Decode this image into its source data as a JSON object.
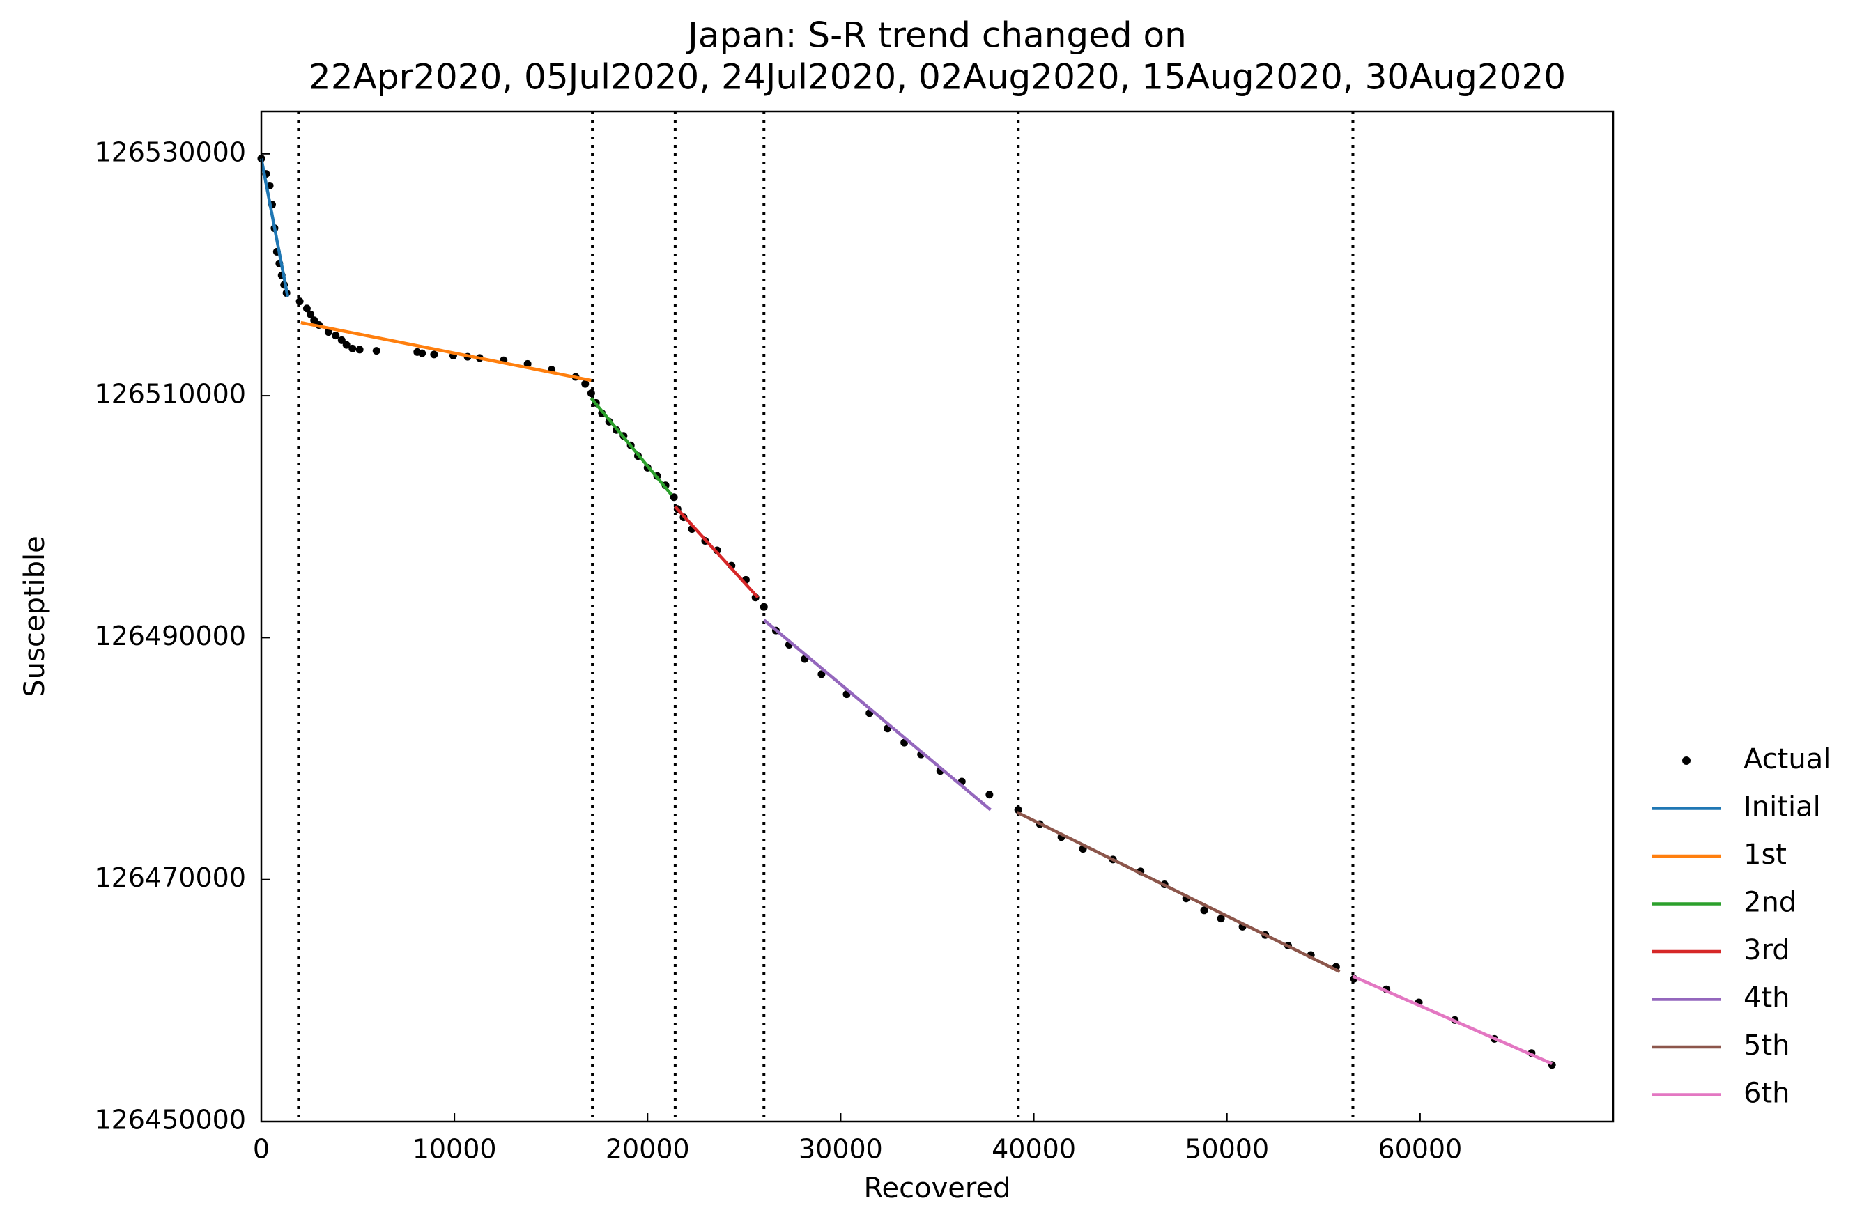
{
  "chart_data": {
    "type": "scatter",
    "title": [
      "Japan: S-R trend changed on",
      "22Apr2020, 05Jul2020, 24Jul2020, 02Aug2020, 15Aug2020, 30Aug2020"
    ],
    "xlabel": "Recovered",
    "ylabel": "Susceptible",
    "xlim": [
      0,
      70000
    ],
    "ylim": [
      126450000,
      126533500
    ],
    "xticks": [
      0,
      10000,
      20000,
      30000,
      40000,
      50000,
      60000
    ],
    "yticks": [
      126450000,
      126470000,
      126490000,
      126510000,
      126530000
    ],
    "vlines": [
      1925,
      17143,
      21429,
      26025,
      39193,
      56522
    ],
    "vline_style": "dotted",
    "legend": "right",
    "series": [
      {
        "name": "Actual",
        "color": "#000000",
        "style": "points",
        "x": [
          0,
          248,
          435,
          559,
          683,
          807,
          932,
          1056,
          1180,
          1304,
          1988,
          2360,
          2547,
          2733,
          2981,
          3478,
          3851,
          4161,
          4410,
          4720,
          5093,
          5963,
          8074,
          8323,
          8944,
          9938,
          10683,
          11304,
          12546,
          13788,
          15031,
          16273,
          16770,
          17081,
          17329,
          17639,
          18012,
          18385,
          18757,
          19130,
          19503,
          20000,
          20496,
          20931,
          21366,
          21552,
          21863,
          22298,
          22981,
          23602,
          24347,
          25092,
          25589,
          26025,
          26645,
          27329,
          28136,
          29006,
          30310,
          31490,
          32422,
          33291,
          34161,
          35155,
          36272,
          37701,
          39191,
          40309,
          41427,
          42545,
          44098,
          45527,
          46768,
          47887,
          48818,
          49688,
          50806,
          51986,
          53166,
          54346,
          55650,
          56582,
          58259,
          59936,
          61799,
          63849,
          65774,
          66830
        ],
        "values": [
          126529610,
          126528340,
          126527370,
          126525800,
          126523850,
          126521900,
          126520930,
          126519950,
          126519170,
          126518490,
          126517800,
          126517220,
          126516730,
          126516240,
          126515850,
          126515270,
          126514980,
          126514590,
          126514200,
          126513900,
          126513810,
          126513710,
          126513610,
          126513510,
          126513410,
          126513320,
          126513220,
          126513120,
          126512930,
          126512630,
          126512150,
          126511560,
          126510980,
          126510200,
          126509410,
          126508540,
          126507850,
          126507170,
          126506680,
          126505900,
          126505020,
          126504050,
          126503370,
          126502590,
          126501610,
          126500630,
          126499950,
          126498980,
          126498000,
          126497220,
          126495950,
          126494780,
          126493320,
          126492540,
          126490590,
          126489420,
          126488240,
          126486980,
          126485320,
          126483760,
          126482490,
          126481320,
          126480340,
          126478980,
          126478100,
          126477020,
          126475760,
          126474590,
          126473510,
          126472540,
          126471660,
          126470680,
          126469610,
          126468440,
          126467460,
          126466780,
          126466100,
          126465420,
          126464540,
          126463760,
          126462780,
          126461800,
          126460930,
          126459850,
          126458390,
          126456830,
          126455660,
          126454680
        ]
      },
      {
        "name": "Initial",
        "color": "#1f77b4",
        "style": "line",
        "x": [
          0,
          1366
        ],
        "values": [
          126529610,
          126518200
        ]
      },
      {
        "name": "1st",
        "color": "#ff7f0e",
        "style": "line",
        "x": [
          2050,
          17081
        ],
        "values": [
          126516050,
          126511270
        ]
      },
      {
        "name": "2nd",
        "color": "#2ca02c",
        "style": "line",
        "x": [
          17081,
          21242
        ],
        "values": [
          126509800,
          126501800
        ]
      },
      {
        "name": "3rd",
        "color": "#d62728",
        "style": "line",
        "x": [
          21429,
          25714
        ],
        "values": [
          126500830,
          126493320
        ]
      },
      {
        "name": "4th",
        "color": "#9467bd",
        "style": "line",
        "x": [
          26025,
          37764
        ],
        "values": [
          126491460,
          126475760
        ]
      },
      {
        "name": "5th",
        "color": "#8c564b",
        "style": "line",
        "x": [
          39130,
          55839
        ],
        "values": [
          126475560,
          126462390
        ]
      },
      {
        "name": "6th",
        "color": "#e377c2",
        "style": "line",
        "x": [
          56522,
          66832
        ],
        "values": [
          126462000,
          126454780
        ]
      }
    ]
  }
}
